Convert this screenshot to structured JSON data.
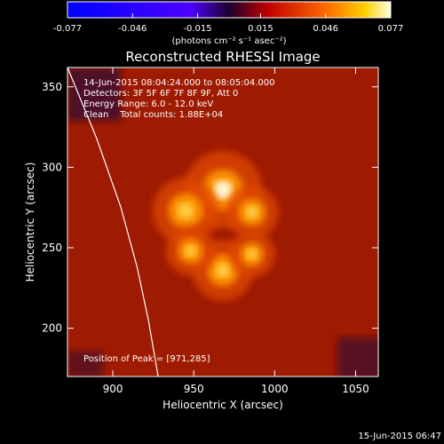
{
  "chart_data": {
    "type": "heatmap",
    "title": "Reconstructed RHESSI Image",
    "xlabel": "Heliocentric X (arcsec)",
    "ylabel": "Heliocentric Y (arcsec)",
    "xlim": [
      872,
      1064
    ],
    "ylim": [
      170,
      362
    ],
    "x_ticks": [
      900,
      950,
      1000,
      1050
    ],
    "y_ticks": [
      200,
      250,
      300,
      350
    ],
    "colorbar": {
      "ticks": [
        "-0.077",
        "-0.046",
        "-0.015",
        "0.015",
        "0.046",
        "0.077"
      ],
      "unit_label": "(photons cm⁻² s⁻¹ asec⁻²)",
      "range": [
        -0.077,
        0.077
      ]
    },
    "info_lines": [
      "14-Jun-2015 08:04:24.000 to 08:05:04.000",
      "Detectors: 3F 5F 6F 7F 8F 9F, Att 0",
      "Energy Range: 6.0 - 12.0 keV",
      "Clean    Total counts: 1.88E+04"
    ],
    "peak_label": "Position of Peak = [971,285]",
    "sources": [
      {
        "x": 968,
        "y": 286,
        "intensity": 0.077
      },
      {
        "x": 945,
        "y": 273,
        "intensity": 0.062
      },
      {
        "x": 986,
        "y": 272,
        "intensity": 0.045
      },
      {
        "x": 968,
        "y": 236,
        "intensity": 0.055
      },
      {
        "x": 948,
        "y": 248,
        "intensity": 0.04
      },
      {
        "x": 986,
        "y": 246,
        "intensity": 0.036
      }
    ],
    "limb_curve": [
      [
        872,
        362
      ],
      [
        890,
        318
      ],
      [
        905,
        275
      ],
      [
        915,
        238
      ],
      [
        922,
        205
      ],
      [
        928,
        170
      ]
    ],
    "timestamp": "15-Jun-2015 06:47"
  }
}
